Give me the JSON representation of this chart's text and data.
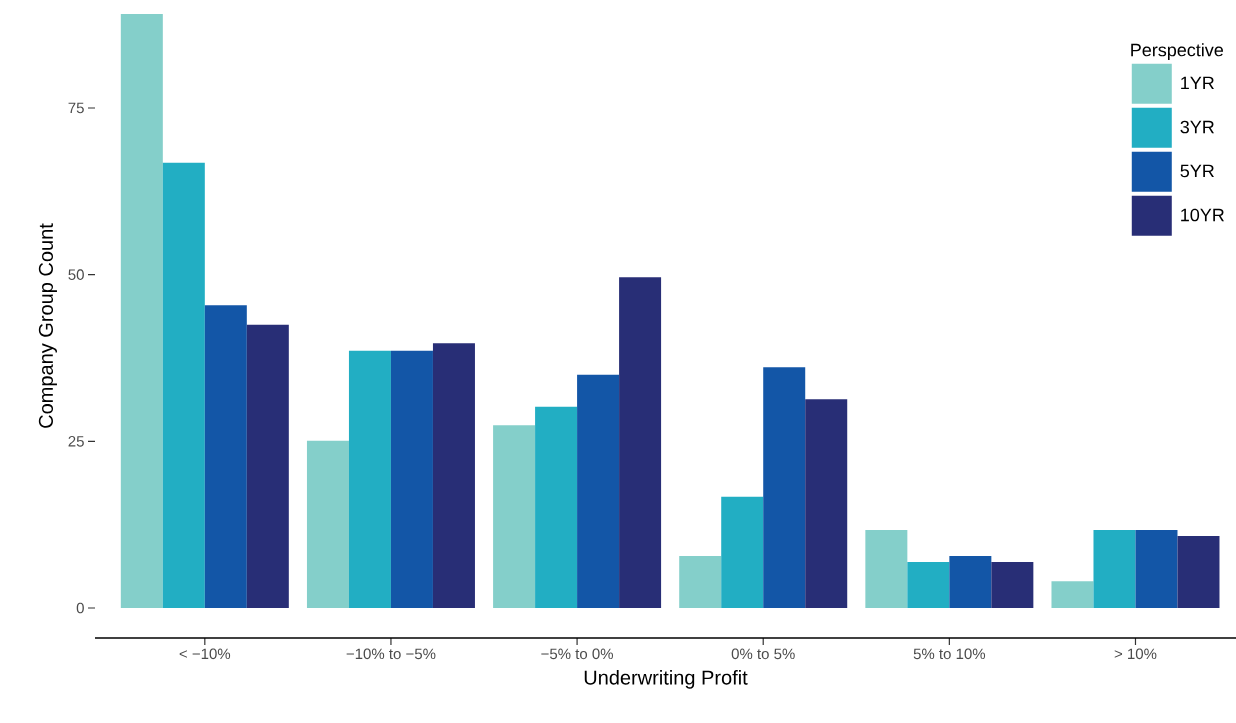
{
  "chart_data": {
    "type": "bar",
    "xlabel": "Underwriting Profit",
    "ylabel": "Company Group Count",
    "legend_title": "Perspective",
    "legend": "top right",
    "categories": [
      "< −10%",
      "−10% to −5%",
      "−5% to 0%",
      "0% to 5%",
      "5% to 10%",
      "> 10%"
    ],
    "series": [
      {
        "name": "1YR",
        "color": "#84cfca",
        "values": [
          89.1,
          25.1,
          27.4,
          7.8,
          11.7,
          4.0
        ]
      },
      {
        "name": "3YR",
        "color": "#22aec3",
        "values": [
          66.8,
          38.6,
          30.2,
          16.7,
          6.9,
          11.7
        ]
      },
      {
        "name": "5YR",
        "color": "#1356a7",
        "values": [
          45.4,
          38.6,
          35.0,
          36.1,
          7.8,
          11.7
        ]
      },
      {
        "name": "10YR",
        "color": "#282e76",
        "values": [
          42.5,
          39.7,
          49.6,
          31.3,
          6.9,
          10.8
        ]
      }
    ],
    "ylim": [
      -4.5,
      89.1
    ],
    "yticks": [
      0,
      25,
      50,
      75
    ]
  }
}
